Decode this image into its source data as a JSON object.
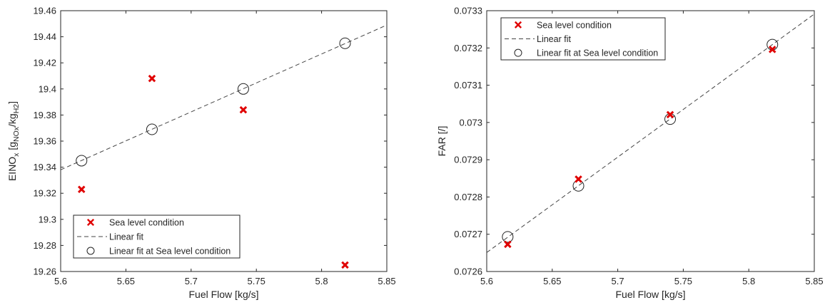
{
  "chart_data": [
    {
      "type": "scatter",
      "xlabel": "Fuel Flow [kg/s]",
      "ylabel": {
        "parts": [
          {
            "text": "EINO",
            "style": "normal"
          },
          {
            "text": "x",
            "style": "sub"
          },
          {
            "text": " [g",
            "style": "normal"
          },
          {
            "text": "NOx",
            "style": "sub"
          },
          {
            "text": "/kg",
            "style": "normal"
          },
          {
            "text": "H2",
            "style": "sub"
          },
          {
            "text": "]",
            "style": "normal"
          }
        ]
      },
      "xlim": [
        5.6,
        5.85
      ],
      "ylim": [
        19.26,
        19.46
      ],
      "xticks": [
        5.6,
        5.65,
        5.7,
        5.75,
        5.8,
        5.85
      ],
      "xtick_labels": [
        "5.6",
        "5.65",
        "5.7",
        "5.75",
        "5.8",
        "5.85"
      ],
      "yticks": [
        19.26,
        19.28,
        19.3,
        19.32,
        19.34,
        19.36,
        19.38,
        19.4,
        19.42,
        19.44,
        19.46
      ],
      "ytick_labels": [
        "19.26",
        "19.28",
        "19.3",
        "19.32",
        "19.34",
        "19.36",
        "19.38",
        "19.4",
        "19.42",
        "19.44",
        "19.46"
      ],
      "grid": false,
      "legend_position": "bottom-left",
      "series": [
        {
          "name": "Sea level condition",
          "marker": "x",
          "color": "#e00000",
          "x": [
            5.616,
            5.67,
            5.74,
            5.818
          ],
          "y": [
            19.323,
            19.408,
            19.384,
            19.265
          ]
        },
        {
          "name": "Linear fit",
          "line": "dashed",
          "color": "#444444",
          "x": [
            5.6,
            5.85
          ],
          "y": [
            19.338,
            19.449
          ]
        },
        {
          "name": "Linear fit at Sea level condition",
          "marker": "circle",
          "color": "#222222",
          "x": [
            5.616,
            5.67,
            5.74,
            5.818
          ],
          "y": [
            19.345,
            19.369,
            19.4,
            19.435
          ]
        }
      ]
    },
    {
      "type": "scatter",
      "xlabel": "Fuel Flow [kg/s]",
      "ylabel": {
        "parts": [
          {
            "text": "FAR [/]",
            "style": "normal"
          }
        ]
      },
      "xlim": [
        5.6,
        5.85
      ],
      "ylim": [
        0.0726,
        0.0733
      ],
      "xticks": [
        5.6,
        5.65,
        5.7,
        5.75,
        5.8,
        5.85
      ],
      "xtick_labels": [
        "5.6",
        "5.65",
        "5.7",
        "5.75",
        "5.8",
        "5.85"
      ],
      "yticks": [
        0.0726,
        0.0727,
        0.0728,
        0.0729,
        0.073,
        0.0731,
        0.0732,
        0.0733
      ],
      "ytick_labels": [
        "0.0726",
        "0.0727",
        "0.0728",
        "0.0729",
        "0.073",
        "0.0731",
        "0.0732",
        "0.0733"
      ],
      "grid": false,
      "legend_position": "top-left",
      "series": [
        {
          "name": "Sea level condition",
          "marker": "x",
          "color": "#e00000",
          "x": [
            5.616,
            5.67,
            5.74,
            5.818
          ],
          "y": [
            0.072673,
            0.072848,
            0.073021,
            0.073196
          ]
        },
        {
          "name": "Linear fit",
          "line": "dashed",
          "color": "#444444",
          "x": [
            5.6,
            5.85
          ],
          "y": [
            0.072651,
            0.073291
          ]
        },
        {
          "name": "Linear fit at Sea level condition",
          "marker": "circle",
          "color": "#222222",
          "x": [
            5.616,
            5.67,
            5.74,
            5.818
          ],
          "y": [
            0.072693,
            0.07283,
            0.073009,
            0.073209
          ]
        }
      ]
    }
  ]
}
